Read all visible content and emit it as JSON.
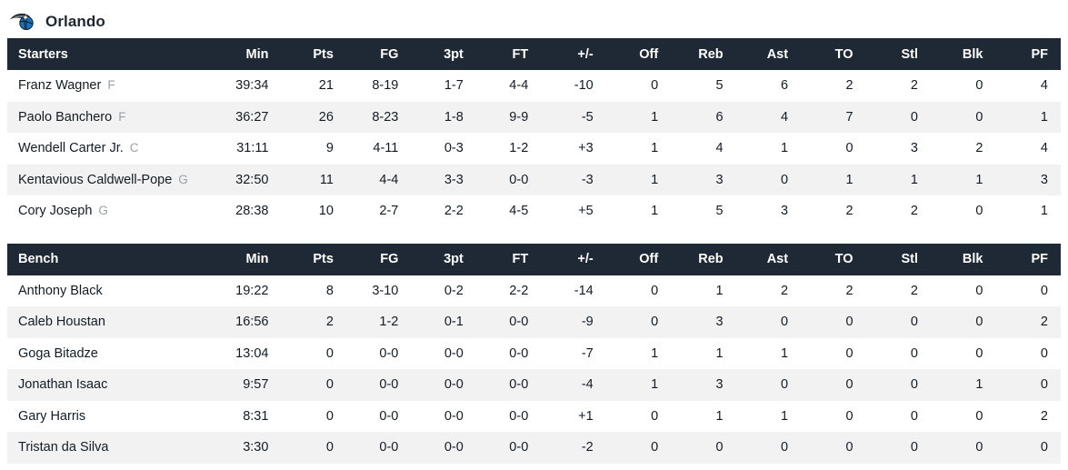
{
  "team": {
    "name": "Orlando",
    "logo_icon": "orlando-magic-logo"
  },
  "colors": {
    "table_header_bg": "#1f2935",
    "table_header_text": "#ffffff",
    "row_bg": "#ffffff",
    "row_alt_bg": "#f2f2f2",
    "body_text": "#131c24",
    "position_text": "#9aa1a8",
    "logo_ball_blue": "#1d70b8",
    "logo_streak_dark": "#242e39",
    "logo_streak_silver": "#8b949c"
  },
  "columns": [
    "Min",
    "Pts",
    "FG",
    "3pt",
    "FT",
    "+/-",
    "Off",
    "Reb",
    "Ast",
    "TO",
    "Stl",
    "Blk",
    "PF"
  ],
  "tables": [
    {
      "label": "Starters",
      "rows": [
        {
          "name": "Franz Wagner",
          "position": "F",
          "stats": [
            "39:34",
            "21",
            "8-19",
            "1-7",
            "4-4",
            "-10",
            "0",
            "5",
            "6",
            "2",
            "2",
            "0",
            "4"
          ]
        },
        {
          "name": "Paolo Banchero",
          "position": "F",
          "stats": [
            "36:27",
            "26",
            "8-23",
            "1-8",
            "9-9",
            "-5",
            "1",
            "6",
            "4",
            "7",
            "0",
            "0",
            "1"
          ]
        },
        {
          "name": "Wendell Carter Jr.",
          "position": "C",
          "stats": [
            "31:11",
            "9",
            "4-11",
            "0-3",
            "1-2",
            "+3",
            "1",
            "4",
            "1",
            "0",
            "3",
            "2",
            "4"
          ]
        },
        {
          "name": "Kentavious Caldwell-Pope",
          "position": "G",
          "stats": [
            "32:50",
            "11",
            "4-4",
            "3-3",
            "0-0",
            "-3",
            "1",
            "3",
            "0",
            "1",
            "1",
            "1",
            "3"
          ]
        },
        {
          "name": "Cory Joseph",
          "position": "G",
          "stats": [
            "28:38",
            "10",
            "2-7",
            "2-2",
            "4-5",
            "+5",
            "1",
            "5",
            "3",
            "2",
            "2",
            "0",
            "1"
          ]
        }
      ]
    },
    {
      "label": "Bench",
      "rows": [
        {
          "name": "Anthony Black",
          "position": "",
          "stats": [
            "19:22",
            "8",
            "3-10",
            "0-2",
            "2-2",
            "-14",
            "0",
            "1",
            "2",
            "2",
            "2",
            "0",
            "0"
          ]
        },
        {
          "name": "Caleb Houstan",
          "position": "",
          "stats": [
            "16:56",
            "2",
            "1-2",
            "0-1",
            "0-0",
            "-9",
            "0",
            "3",
            "0",
            "0",
            "0",
            "0",
            "2"
          ]
        },
        {
          "name": "Goga Bitadze",
          "position": "",
          "stats": [
            "13:04",
            "0",
            "0-0",
            "0-0",
            "0-0",
            "-7",
            "1",
            "1",
            "1",
            "0",
            "0",
            "0",
            "0"
          ]
        },
        {
          "name": "Jonathan Isaac",
          "position": "",
          "stats": [
            "9:57",
            "0",
            "0-0",
            "0-0",
            "0-0",
            "-4",
            "1",
            "3",
            "0",
            "0",
            "0",
            "1",
            "0"
          ]
        },
        {
          "name": "Gary Harris",
          "position": "",
          "stats": [
            "8:31",
            "0",
            "0-0",
            "0-0",
            "0-0",
            "+1",
            "0",
            "1",
            "1",
            "0",
            "0",
            "0",
            "2"
          ]
        },
        {
          "name": "Tristan da Silva",
          "position": "",
          "stats": [
            "3:30",
            "0",
            "0-0",
            "0-0",
            "0-0",
            "-2",
            "0",
            "0",
            "0",
            "0",
            "0",
            "0",
            "0"
          ]
        }
      ]
    }
  ]
}
